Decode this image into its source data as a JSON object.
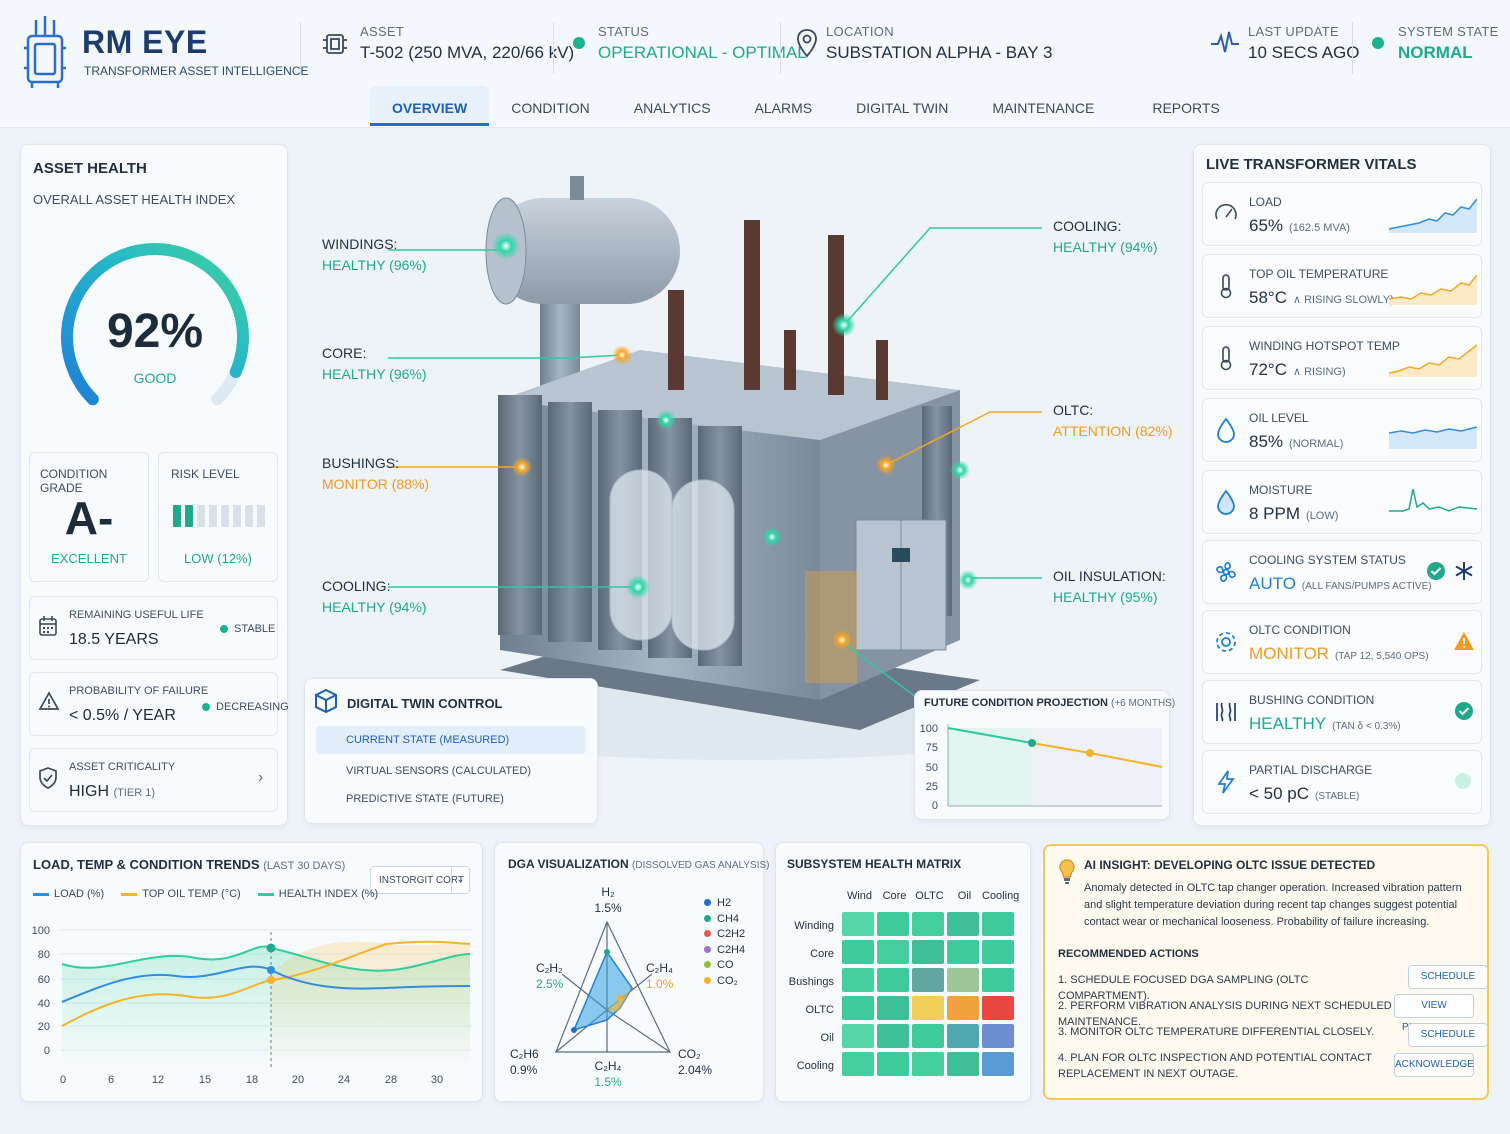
{
  "header": {
    "brand": "RM EYE",
    "brand_sub": "TRANSFORMER ASSET INTELLIGENCE",
    "asset_label": "ASSET",
    "asset_value": "T-502 (250 MVA, 220/66 kV)",
    "status_label": "STATUS",
    "status_value": "OPERATIONAL - OPTIMAL",
    "location_label": "LOCATION",
    "location_value": "SUBSTATION ALPHA - BAY 3",
    "update_label": "LAST UPDATE",
    "update_value": "10 SECS AGO",
    "system_label": "SYSTEM STATE",
    "system_value": "NORMAL"
  },
  "tabs": [
    "OVERVIEW",
    "CONDITION",
    "ANALYTICS",
    "ALARMS",
    "DIGITAL TWIN",
    "MAINTENANCE",
    "REPORTS"
  ],
  "asset_health": {
    "title": "ASSET HEALTH",
    "subtitle": "OVERALL ASSET HEALTH INDEX",
    "value": "92%",
    "value_num": 92,
    "grade_word": "GOOD",
    "condition_label": "CONDITION GRADE",
    "condition_value": "A-",
    "condition_word": "EXCELLENT",
    "risk_label": "RISK LEVEL",
    "risk_value": "LOW (12%)",
    "risk_fraction": 0.12,
    "rul_label": "REMAINING USEFUL LIFE",
    "rul_value": "18.5 YEARS",
    "rul_trend": "STABLE",
    "pof_label": "PROBABILITY OF FAILURE",
    "pof_value": "< 0.5% / YEAR",
    "pof_trend": "DECREASING",
    "crit_label": "ASSET CRITICALITY",
    "crit_value": "HIGH",
    "crit_tier": "(TIER 1)"
  },
  "annotations": {
    "windings": {
      "label": "WINDINGS:",
      "value": "HEALTHY (96%)"
    },
    "core": {
      "label": "CORE:",
      "value": "HEALTHY (96%)"
    },
    "bushings": {
      "label": "BUSHINGS:",
      "value": "MONITOR (88%)"
    },
    "cooling_left": {
      "label": "COOLING:",
      "value": "HEALTHY (94%)"
    },
    "cooling_right": {
      "label": "COOLING:",
      "value": "HEALTHY (94%)"
    },
    "oltc": {
      "label": "OLTC:",
      "value": "ATTENTION (82%)"
    },
    "oil": {
      "label": "OIL INSULATION:",
      "value": "HEALTHY (95%)"
    }
  },
  "digital_twin": {
    "title": "DIGITAL TWIN CONTROL",
    "options": [
      "CURRENT STATE (MEASURED)",
      "VIRTUAL SENSORS (CALCULATED)",
      "PREDICTIVE STATE (FUTURE)"
    ]
  },
  "projection": {
    "title": "FUTURE CONDITION PROJECTION",
    "title_note": "(+6 MONTHS)",
    "yticks": [
      "100",
      "75",
      "50",
      "25",
      "0"
    ]
  },
  "vitals": {
    "title": "LIVE TRANSFORMER VITALS",
    "items": [
      {
        "label": "LOAD",
        "value": "65%",
        "note": "(162.5 MVA)"
      },
      {
        "label": "TOP OIL TEMPERATURE",
        "value": "58°C",
        "note": "∧ RISING SLOWLY)"
      },
      {
        "label": "WINDING HOTSPOT TEMP",
        "value": "72°C",
        "note": "∧ RISING)"
      },
      {
        "label": "OIL LEVEL",
        "value": "85%",
        "note": "(NORMAL)"
      },
      {
        "label": "MOISTURE",
        "value": "8 PPM",
        "note": "(LOW)"
      },
      {
        "label": "COOLING SYSTEM STATUS",
        "value": "AUTO",
        "note": "(ALL FANS/PUMPS ACTIVE)"
      },
      {
        "label": "OLTC CONDITION",
        "value": "MONITOR",
        "note": "(TAP 12, 5,540 OPS)"
      },
      {
        "label": "BUSHING CONDITION",
        "value": "HEALTHY",
        "note": "(TAN δ < 0.3%)"
      },
      {
        "label": "PARTIAL DISCHARGE",
        "value": "< 50 pC",
        "note": "(STABLE)"
      }
    ]
  },
  "trends": {
    "title": "LOAD, TEMP & CONDITION TRENDS",
    "title_note": "(LAST 30 DAYS)",
    "dropdown": "INSTORGIT CORT",
    "legend": [
      "LOAD (%)",
      "TOP OIL TEMP (°C)",
      "HEALTH INDEX (%)"
    ],
    "colors": [
      "#2f8ee0",
      "#f5b32a",
      "#2fcf9c"
    ],
    "yticks": [
      "100",
      "80",
      "60",
      "40",
      "20",
      "0"
    ],
    "xticks": [
      "0",
      "6",
      "12",
      "15",
      "18",
      "20",
      "24",
      "28",
      "30"
    ]
  },
  "dga": {
    "title": "DGA VISUALIZATION",
    "title_note": "(DISSOLVED GAS ANALYSIS)",
    "axes": [
      {
        "name": "H₂",
        "value": "1.5%"
      },
      {
        "name": "C₂H₄",
        "value": "1.0%"
      },
      {
        "name": "CO₂",
        "value": "2.04%"
      },
      {
        "name": "C₂H₄",
        "value": "1.5%"
      },
      {
        "name": "C₂H6",
        "value": "0.9%"
      },
      {
        "name": "C₂H₂",
        "value": "2.5%"
      }
    ],
    "legend": [
      {
        "name": "H2",
        "color": "#1f6fd0"
      },
      {
        "name": "CH4",
        "color": "#1fa98a"
      },
      {
        "name": "C2H2",
        "color": "#e8564a"
      },
      {
        "name": "C2H4",
        "color": "#9b6fd6"
      },
      {
        "name": "CO",
        "color": "#8fbf3a"
      },
      {
        "name": "CO₂",
        "color": "#f5b32a"
      }
    ]
  },
  "matrix": {
    "title": "SUBSYSTEM HEALTH MATRIX",
    "cols": [
      "Wind",
      "Core",
      "OLTC",
      "Oil",
      "Cooling"
    ],
    "rows": [
      "Winding",
      "Core",
      "Bushings",
      "OLTC",
      "Oil",
      "Cooling"
    ],
    "cells": [
      [
        "#55d6a8",
        "#3dcb9c",
        "#45cf9f",
        "#3dbf98",
        "#3dcb9c"
      ],
      [
        "#3dcb9c",
        "#45cf9f",
        "#3dbf98",
        "#3dcb9c",
        "#3dcb9c"
      ],
      [
        "#45cf9f",
        "#3dcb9c",
        "#5fa7a0",
        "#9fc49a",
        "#3dcb9c"
      ],
      [
        "#3dcb9c",
        "#3dbf98",
        "#f0cd57",
        "#f2a23c",
        "#e8483f"
      ],
      [
        "#55d6a8",
        "#3dbf98",
        "#3dcb9c",
        "#4fa8b0",
        "#6d8fd0"
      ],
      [
        "#45cf9f",
        "#3dcb9c",
        "#45cf9f",
        "#3dbf98",
        "#5a9ad6"
      ]
    ]
  },
  "ai_insight": {
    "title": "AI INSIGHT: DEVELOPING OLTC ISSUE DETECTED",
    "body": "Anomaly detected in OLTC tap changer operation. Increased vibration pattern and slight temperature deviation during recent tap changes suggest potential contact wear or mechanical looseness. Probability of failure increasing.",
    "actions_title": "RECOMMENDED ACTIONS",
    "actions": [
      {
        "text": "1. SCHEDULE FOCUSED DGA SAMPLING (OLTC COMPARTMENT).",
        "button": "SCHEDULE"
      },
      {
        "text": "2. PERFORM VIBRATION ANALYSIS DURING NEXT SCHEDULED MAINTENANCE.",
        "button": "VIEW PROCEDURE"
      },
      {
        "text": "3. MONITOR OLTC TEMPERATURE DIFFERENTIAL CLOSELY.",
        "button": "SCHEDULE"
      },
      {
        "text": "4. PLAN FOR OLTC INSPECTION AND POTENTIAL CONTACT REPLACEMENT IN NEXT OUTAGE.",
        "button": "ACKNOWLEDGE"
      }
    ]
  }
}
